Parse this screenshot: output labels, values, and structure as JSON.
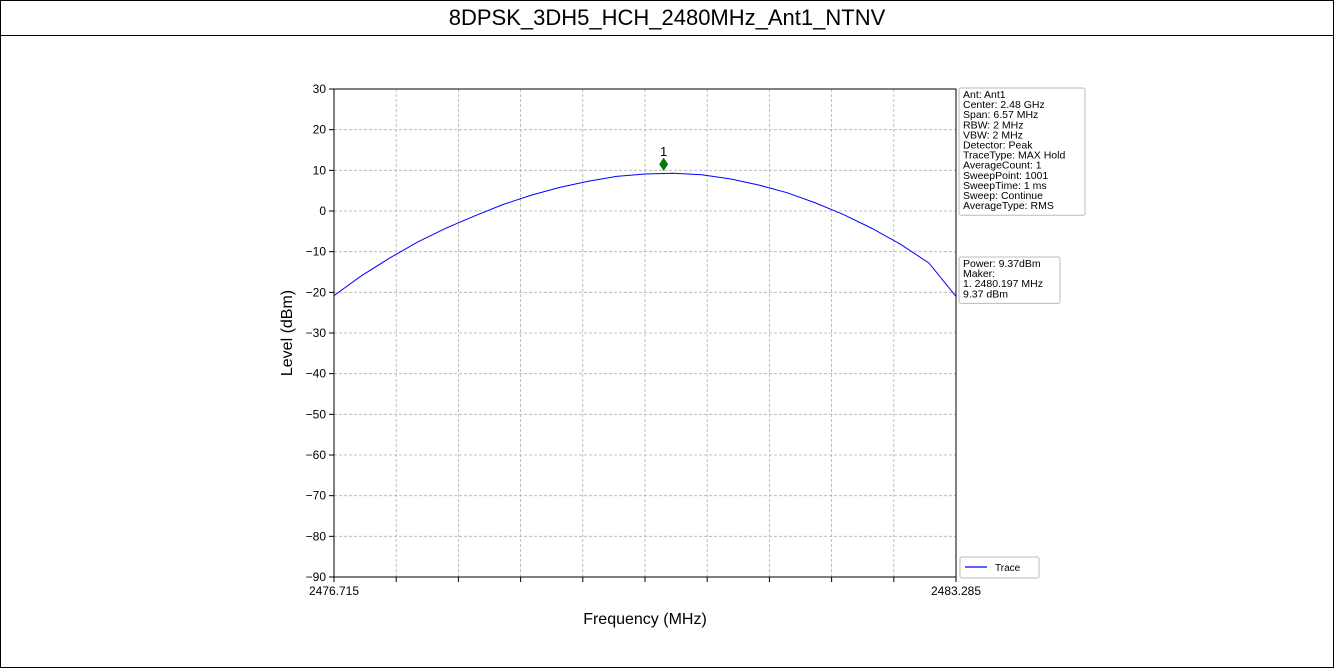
{
  "page_title": "8DPSK_3DH5_HCH_2480MHz_Ant1_NTNV",
  "chart_data": {
    "type": "line",
    "title": "",
    "xlabel": "Frequency (MHz)",
    "ylabel": "Level (dBm)",
    "xlim": [
      2476.715,
      2483.285
    ],
    "ylim": [
      -90,
      30
    ],
    "x_tick_labels": [
      "2476.715",
      "2483.285"
    ],
    "y_ticks": [
      30,
      20,
      10,
      0,
      -10,
      -20,
      -30,
      -40,
      -50,
      -60,
      -70,
      -80,
      -90
    ],
    "y_tick_labels": [
      "30",
      "20",
      "10",
      "0",
      "−10",
      "−20",
      "−30",
      "−40",
      "−50",
      "−60",
      "−70",
      "−80",
      "−90"
    ],
    "grid": true,
    "legend_position": "bottom-right",
    "series": [
      {
        "name": "Trace",
        "color": "#0000ff",
        "x": [
          2476.715,
          2477.0,
          2477.3,
          2477.6,
          2477.9,
          2478.2,
          2478.5,
          2478.8,
          2479.1,
          2479.4,
          2479.7,
          2480.0,
          2480.3,
          2480.6,
          2480.9,
          2481.2,
          2481.5,
          2481.8,
          2482.1,
          2482.4,
          2482.7,
          2483.0,
          2483.285
        ],
        "y": [
          -20.8,
          -16.0,
          -11.6,
          -7.6,
          -4.2,
          -1.2,
          1.6,
          3.9,
          5.8,
          7.3,
          8.5,
          9.1,
          9.3,
          8.9,
          7.9,
          6.4,
          4.5,
          2.0,
          -0.9,
          -4.3,
          -8.2,
          -12.8,
          -21.0
        ]
      }
    ],
    "marker": {
      "label": "1",
      "x": 2480.197,
      "y": 11.5,
      "color": "#008000"
    },
    "info_box": [
      "Ant: Ant1",
      "Center: 2.48 GHz",
      "Span: 6.57 MHz",
      "RBW: 2 MHz",
      "VBW: 2 MHz",
      "Detector: Peak",
      "TraceType: MAX Hold",
      "AverageCount: 1",
      "SweepPoint: 1001",
      "SweepTime: 1 ms",
      "Sweep: Continue",
      "AverageType: RMS"
    ],
    "result_box": [
      "Power: 9.37dBm",
      "Maker:",
      "1. 2480.197 MHz",
      "    9.37 dBm"
    ]
  }
}
